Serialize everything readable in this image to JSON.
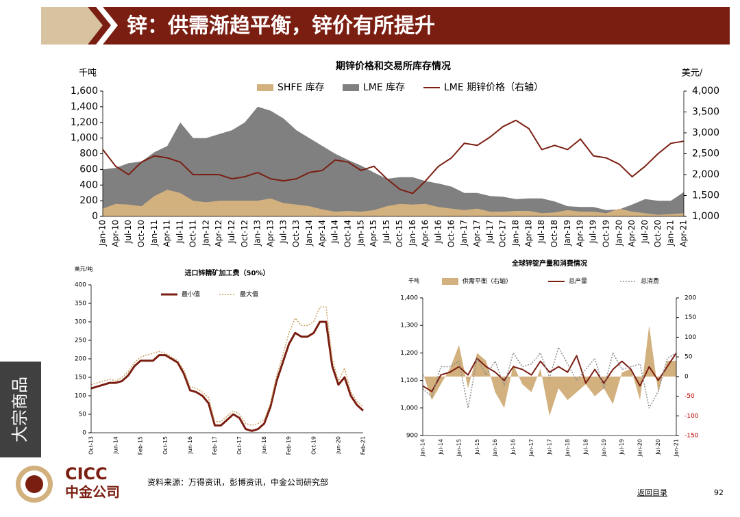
{
  "header": {
    "title": "锌：供需渐趋平衡，锌价有所提升"
  },
  "sidebar": {
    "label": "大宗商品"
  },
  "footer": {
    "logo_en": "CICC",
    "logo_cn": "中金公司",
    "source": "资料来源：万得资讯，彭博资讯，中金公司研究部",
    "link": "返回目录",
    "page": "92"
  },
  "chart_data": [
    {
      "type": "combo",
      "title": "期锌价格和交易所库存情况",
      "y_unit": "千吨",
      "y2_unit": "美元/",
      "categories": [
        "Jan-10",
        "Apr-10",
        "Jul-10",
        "Oct-10",
        "Jan-11",
        "Apr-11",
        "Jul-11",
        "Oct-11",
        "Jan-12",
        "Apr-12",
        "Jul-12",
        "Oct-12",
        "Jan-13",
        "Apr-13",
        "Jul-13",
        "Oct-13",
        "Jan-14",
        "Apr-14",
        "Jul-14",
        "Oct-14",
        "Jan-15",
        "Apr-15",
        "Jul-15",
        "Oct-15",
        "Jan-16",
        "Apr-16",
        "Jul-16",
        "Oct-16",
        "Jan-17",
        "Apr-17",
        "Jul-17",
        "Oct-17",
        "Jan-18",
        "Apr-18",
        "Jul-18",
        "Oct-18",
        "Jan-19",
        "Apr-19",
        "Jul-19",
        "Oct-19",
        "Jan-20",
        "Apr-20",
        "Jul-20",
        "Oct-20",
        "Jan-21",
        "Apr-21"
      ],
      "series": [
        {
          "name": "LME 库存",
          "type": "area",
          "color": "#808080",
          "values": [
            600,
            620,
            680,
            700,
            820,
            900,
            1200,
            1000,
            1000,
            1050,
            1100,
            1200,
            1400,
            1350,
            1250,
            1100,
            1000,
            900,
            800,
            720,
            650,
            560,
            480,
            500,
            500,
            450,
            420,
            380,
            300,
            300,
            260,
            250,
            220,
            230,
            230,
            190,
            130,
            120,
            120,
            80,
            90,
            150,
            220,
            200,
            200,
            310
          ]
        },
        {
          "name": "SHFE 库存",
          "type": "area",
          "color": "#d2b17f",
          "values": [
            100,
            160,
            150,
            130,
            260,
            340,
            300,
            200,
            180,
            200,
            200,
            200,
            200,
            230,
            170,
            150,
            130,
            90,
            60,
            70,
            60,
            80,
            130,
            160,
            150,
            160,
            120,
            100,
            80,
            100,
            60,
            60,
            70,
            70,
            40,
            50,
            80,
            60,
            60,
            40,
            100,
            60,
            40,
            20,
            30,
            40
          ]
        },
        {
          "name": "LME 期锌价格（右轴）",
          "type": "line",
          "axis": "y2",
          "color": "#7b1e12",
          "values": [
            2600,
            2200,
            2000,
            2300,
            2450,
            2400,
            2300,
            2000,
            2000,
            2000,
            1900,
            1950,
            2050,
            1900,
            1850,
            1900,
            2050,
            2100,
            2350,
            2300,
            2100,
            2200,
            1900,
            1650,
            1550,
            1850,
            2200,
            2400,
            2750,
            2700,
            2900,
            3150,
            3300,
            3100,
            2600,
            2700,
            2600,
            2850,
            2450,
            2400,
            2250,
            1950,
            2200,
            2500,
            2750,
            2800
          ]
        }
      ],
      "legend_order": [
        1,
        0,
        2
      ],
      "ylim": [
        0,
        1600
      ],
      "yticks": [
        0,
        200,
        400,
        600,
        800,
        {
          "value": 1000,
          "label": "1,000"
        },
        {
          "value": 1200,
          "label": "1,200"
        },
        {
          "value": 1400,
          "label": "1,400"
        },
        {
          "value": 1600,
          "label": "1,600"
        }
      ],
      "y2lim": [
        1000,
        4000
      ],
      "y2ticks": [
        {
          "value": 1000,
          "label": "1,000"
        },
        {
          "value": 1500,
          "label": "1,500"
        },
        {
          "value": 2000,
          "label": "2,000"
        },
        {
          "value": 2500,
          "label": "2,500"
        },
        {
          "value": 3000,
          "label": "3,000"
        },
        {
          "value": 3500,
          "label": "3,500"
        },
        {
          "value": 4000,
          "label": "4,000"
        }
      ],
      "grid": false
    },
    {
      "type": "line",
      "title": "进口锌精矿加工费（50%）",
      "y_unit": "美元/吨",
      "categories": [
        "Oct-13",
        null,
        null,
        null,
        "Jun-14",
        null,
        null,
        null,
        "Feb-15",
        null,
        null,
        null,
        "Oct-15",
        null,
        null,
        null,
        "Jun-16",
        null,
        null,
        null,
        "Feb-17",
        null,
        null,
        null,
        "Oct-17",
        null,
        null,
        null,
        "Jun-18",
        null,
        null,
        null,
        "Feb-19",
        null,
        null,
        null,
        "Oct-19",
        null,
        null,
        null,
        "Jun-20",
        null,
        null,
        null,
        "Feb-21"
      ],
      "series": [
        {
          "name": "最小值",
          "color": "#7b1e12",
          "style": "solid",
          "values": [
            120,
            125,
            130,
            135,
            135,
            140,
            155,
            180,
            195,
            195,
            195,
            210,
            210,
            200,
            190,
            160,
            115,
            110,
            100,
            80,
            20,
            20,
            35,
            50,
            40,
            10,
            5,
            10,
            25,
            70,
            140,
            190,
            240,
            270,
            260,
            260,
            270,
            300,
            300,
            180,
            130,
            150,
            100,
            75,
            60
          ]
        },
        {
          "name": "最大值",
          "color": "#c8a060",
          "style": "dotted",
          "values": [
            130,
            135,
            140,
            145,
            140,
            150,
            165,
            190,
            205,
            210,
            215,
            220,
            215,
            205,
            195,
            170,
            125,
            120,
            110,
            95,
            30,
            30,
            45,
            60,
            50,
            25,
            20,
            25,
            35,
            80,
            155,
            210,
            270,
            310,
            290,
            290,
            300,
            340,
            340,
            200,
            140,
            175,
            110,
            85,
            70
          ]
        }
      ],
      "ylim": [
        0,
        400
      ],
      "yticks": [
        0,
        50,
        100,
        150,
        200,
        250,
        300,
        350,
        400
      ],
      "grid": false
    },
    {
      "type": "combo",
      "title": "全球锌锭产量和消费情况",
      "y_unit": "千吨",
      "categories": [
        "Jan-14",
        null,
        "Jul-14",
        null,
        "Jan-15",
        null,
        "Jul-15",
        null,
        "Jan-16",
        null,
        "Jul-16",
        null,
        "Jan-17",
        null,
        "Jul-17",
        null,
        "Jan-18",
        null,
        "Jul-18",
        null,
        "Jan-19",
        null,
        "Jul-19",
        null,
        "Jan-20",
        null,
        "Jul-20",
        null,
        "Jan-21"
      ],
      "series": [
        {
          "name": "供需平衡（右轴）",
          "type": "area",
          "axis": "y2",
          "color": "#d2b17f",
          "values": [
            10,
            -60,
            -20,
            20,
            80,
            -30,
            60,
            40,
            -40,
            -80,
            30,
            -20,
            -40,
            20,
            -100,
            -30,
            -60,
            -40,
            -20,
            -50,
            -30,
            -70,
            10,
            20,
            -60,
            130,
            -40,
            40,
            40
          ]
        },
        {
          "name": "总产量",
          "type": "line",
          "color": "#7b1e12",
          "style": "solid",
          "values": [
            1080,
            1060,
            1120,
            1130,
            1150,
            1120,
            1180,
            1150,
            1130,
            1100,
            1150,
            1140,
            1120,
            1170,
            1130,
            1150,
            1130,
            1190,
            1090,
            1140,
            1090,
            1140,
            1170,
            1140,
            1080,
            1150,
            1100,
            1150,
            1200
          ]
        },
        {
          "name": "总消费",
          "type": "line",
          "color": "#8c8c8c",
          "style": "dotted",
          "values": [
            1070,
            1040,
            1150,
            1150,
            1170,
            1000,
            1180,
            1120,
            1170,
            1080,
            1200,
            1150,
            1160,
            1200,
            1110,
            1220,
            1160,
            1100,
            1140,
            1180,
            1070,
            1200,
            1140,
            1150,
            1160,
            1000,
            1060,
            1180,
            1200
          ]
        }
      ],
      "legend_order": [
        0,
        1,
        2
      ],
      "ylim": [
        900,
        1400
      ],
      "yticks": [
        900,
        {
          "value": 1000,
          "label": "1,000"
        },
        {
          "value": 1100,
          "label": "1,100"
        },
        {
          "value": 1200,
          "label": "1,200"
        },
        {
          "value": 1300,
          "label": "1,300"
        },
        {
          "value": 1400,
          "label": "1,400"
        }
      ],
      "y2lim": [
        -150,
        200
      ],
      "y2ticks": [
        -150,
        -100,
        -50,
        0,
        50,
        100,
        150,
        200
      ],
      "negative_tick_color": "#c00000",
      "grid": false
    }
  ]
}
